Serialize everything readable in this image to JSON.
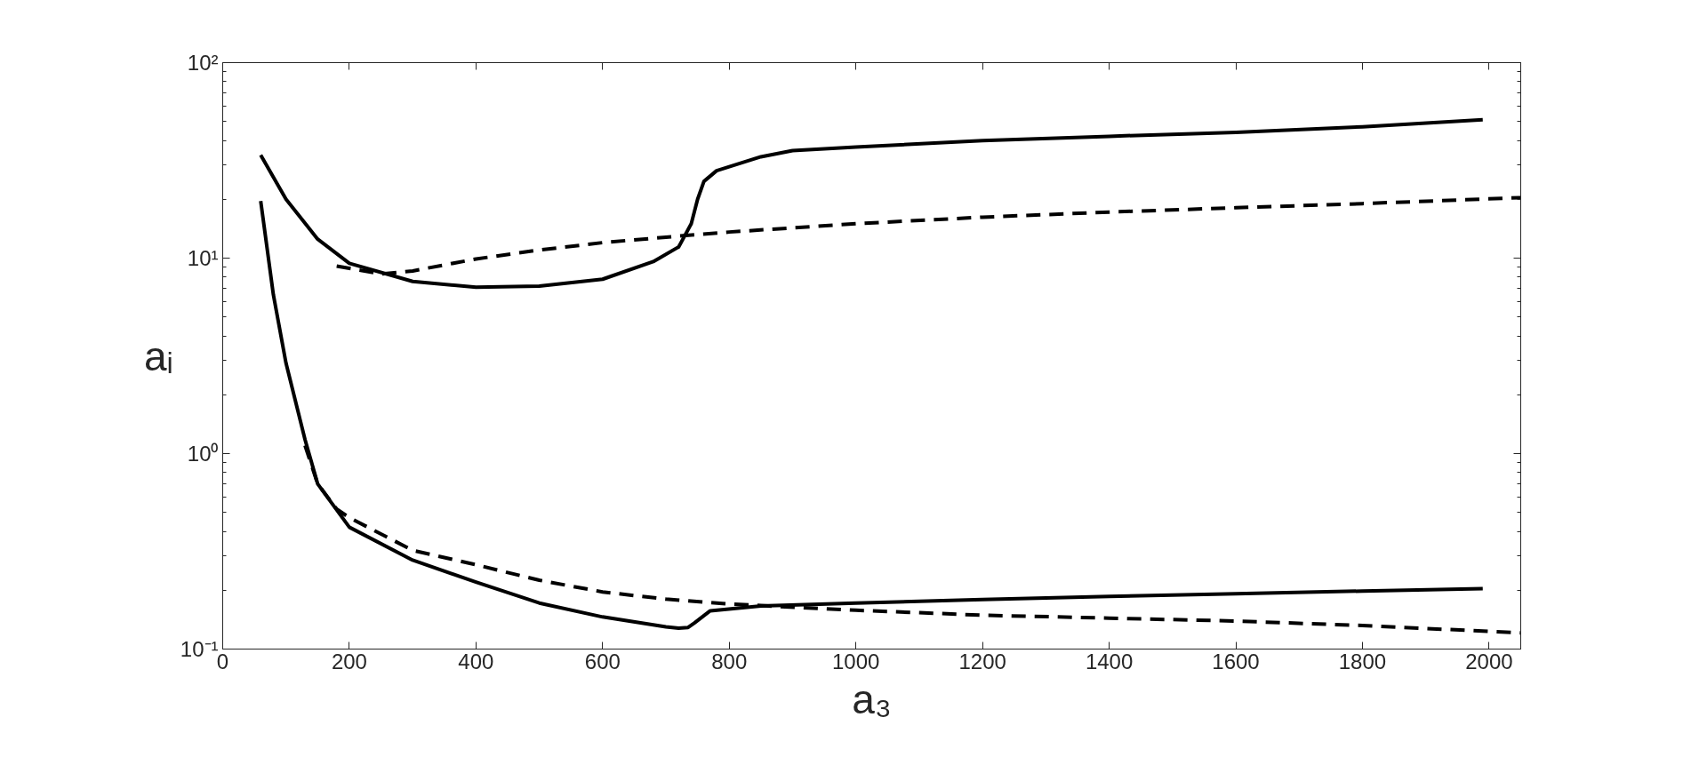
{
  "chart_data": {
    "type": "line",
    "xlabel": "a₃",
    "ylabel": "aᵢ",
    "log": "y",
    "grid": false,
    "xlim": [
      0,
      2050
    ],
    "xticks": [
      0,
      200,
      400,
      600,
      800,
      1000,
      1200,
      1400,
      1600,
      1800,
      2000
    ],
    "ylim": [
      0.1,
      100
    ],
    "yticks": [
      {
        "value": 0.1,
        "label": "10⁻¹"
      },
      {
        "value": 1,
        "label": "10⁰"
      },
      {
        "value": 10,
        "label": "10¹"
      },
      {
        "value": 100,
        "label": "10²"
      }
    ],
    "series": [
      {
        "color": "#000000",
        "line_style": "solid",
        "x": [
          60,
          100,
          150,
          200,
          300,
          400,
          500,
          600,
          680,
          720,
          740,
          750,
          760,
          780,
          850,
          900,
          1000,
          1200,
          1400,
          1600,
          1800,
          1990
        ],
        "values": [
          33.7,
          20,
          12.5,
          9.4,
          7.6,
          7.1,
          7.2,
          7.8,
          9.6,
          11.4,
          15,
          20,
          24.7,
          28,
          33,
          35.5,
          37,
          39.9,
          42,
          44,
          47,
          51
        ]
      },
      {
        "color": "#000000",
        "line_style": "dashed",
        "x": [
          180,
          250,
          300,
          400,
          500,
          600,
          700,
          800,
          1000,
          1200,
          1400,
          1600,
          1800,
          2050
        ],
        "values": [
          9.1,
          8.3,
          8.6,
          9.9,
          11,
          12,
          12.8,
          13.6,
          15,
          16.2,
          17.2,
          18.1,
          19,
          20.4
        ]
      },
      {
        "color": "#000000",
        "line_style": "solid",
        "x": [
          60,
          80,
          100,
          130,
          150,
          200,
          300,
          400,
          500,
          600,
          700,
          720,
          735,
          745,
          770,
          850,
          1000,
          1200,
          1400,
          1600,
          1800,
          1990
        ],
        "values": [
          19.6,
          6.5,
          2.9,
          1.18,
          0.7,
          0.42,
          0.285,
          0.22,
          0.172,
          0.146,
          0.13,
          0.128,
          0.129,
          0.136,
          0.157,
          0.166,
          0.172,
          0.179,
          0.186,
          0.192,
          0.198,
          0.204
        ]
      },
      {
        "color": "#000000",
        "line_style": "dashed",
        "x": [
          130,
          150,
          180,
          200,
          300,
          400,
          500,
          600,
          700,
          800,
          1000,
          1200,
          1400,
          1600,
          1800,
          2050
        ],
        "values": [
          1.1,
          0.7,
          0.52,
          0.47,
          0.32,
          0.27,
          0.225,
          0.196,
          0.18,
          0.17,
          0.158,
          0.149,
          0.144,
          0.139,
          0.132,
          0.121
        ]
      }
    ]
  }
}
